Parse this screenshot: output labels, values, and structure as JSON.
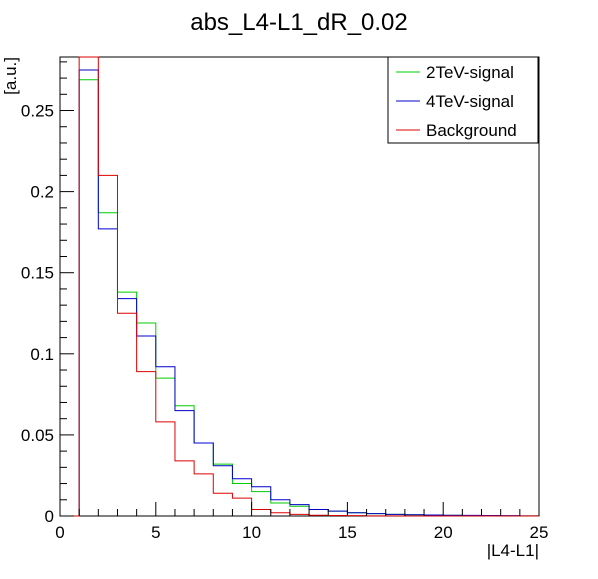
{
  "chart_data": {
    "type": "histogram-step",
    "title": "abs_L4-L1_dR_0.02",
    "xlabel": "|L4-L1|",
    "ylabel": "[a.u.]",
    "xlim": [
      0,
      25
    ],
    "ylim": [
      0,
      0.283
    ],
    "xticks": [
      0,
      5,
      10,
      15,
      20,
      25
    ],
    "xtick_labels": [
      "0",
      "5",
      "10",
      "15",
      "20",
      "25"
    ],
    "yticks": [
      0,
      0.05,
      0.1,
      0.15,
      0.2,
      0.25
    ],
    "ytick_labels": [
      "0",
      "0.05",
      "0.1",
      "0.15",
      "0.2",
      "0.25"
    ],
    "grid": false,
    "legend_position": "top-right",
    "bin_edges": [
      0,
      1,
      2,
      3,
      4,
      5,
      6,
      7,
      8,
      9,
      10,
      11,
      12,
      13,
      14,
      15,
      16,
      17,
      18,
      19,
      20,
      21,
      22,
      23,
      24,
      25
    ],
    "series": [
      {
        "name": "2TeV-signal",
        "color": "#00cc00",
        "values": [
          0,
          0.269,
          0.187,
          0.138,
          0.119,
          0.085,
          0.068,
          0.045,
          0.032,
          0.02,
          0.015,
          0.008,
          0.006,
          0.004,
          0.003,
          0.002,
          0.0015,
          0.001,
          0.0008,
          0.0006,
          0.0004,
          0.0003,
          0.0002,
          0.0001,
          0.0001
        ]
      },
      {
        "name": "4TeV-signal",
        "color": "#0000cc",
        "values": [
          0,
          0.275,
          0.177,
          0.134,
          0.111,
          0.092,
          0.065,
          0.045,
          0.031,
          0.023,
          0.018,
          0.01,
          0.007,
          0.004,
          0.003,
          0.002,
          0.0015,
          0.001,
          0.0008,
          0.0006,
          0.0005,
          0.0004,
          0.0003,
          0.0002,
          0.0001
        ]
      },
      {
        "name": "Background",
        "color": "#dd0000",
        "values": [
          0,
          0.3,
          0.21,
          0.125,
          0.089,
          0.058,
          0.034,
          0.026,
          0.014,
          0.011,
          0.004,
          0.002,
          0.001,
          0.0005,
          0.0003,
          0.0002,
          0.0001,
          0.0001,
          0,
          0,
          0,
          0,
          0,
          0,
          0
        ]
      }
    ]
  }
}
